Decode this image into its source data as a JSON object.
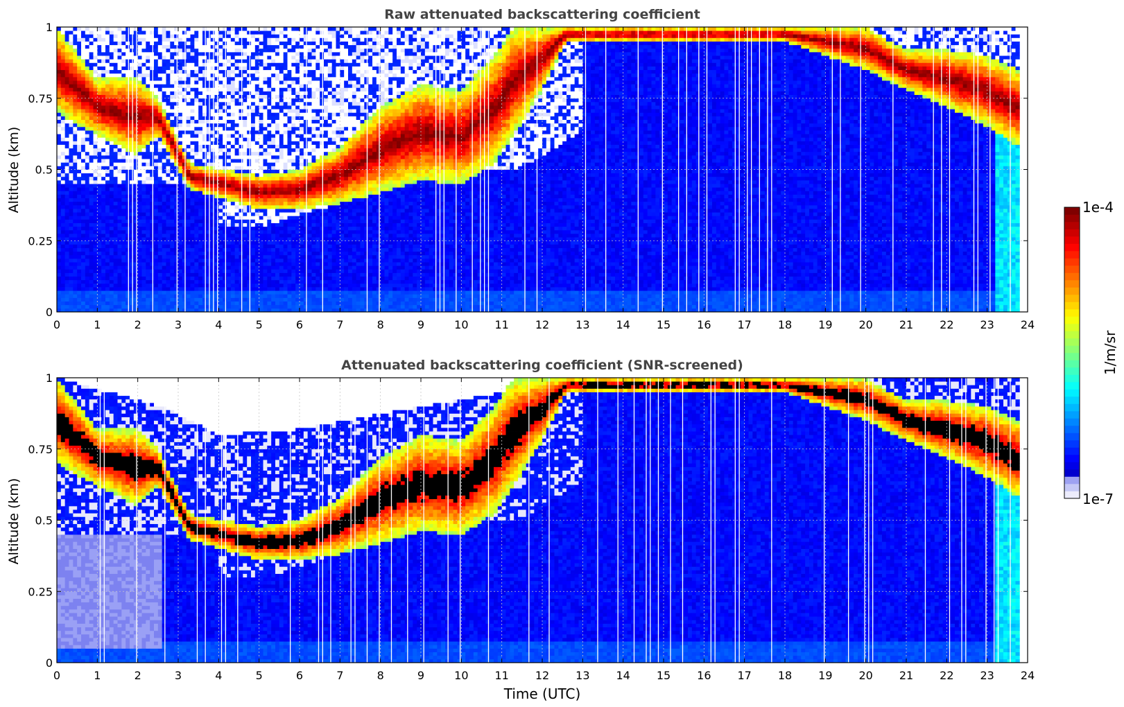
{
  "chart_data": [
    {
      "type": "heatmap",
      "title": "Raw attenuated backscattering coefficient",
      "xlabel": "",
      "ylabel": "Altitude (km)",
      "xlim": [
        0,
        24
      ],
      "ylim": [
        0,
        1
      ],
      "x_ticks": [
        0,
        1,
        2,
        3,
        4,
        5,
        6,
        7,
        8,
        9,
        10,
        11,
        12,
        13,
        14,
        15,
        16,
        17,
        18,
        19,
        20,
        21,
        22,
        23,
        24
      ],
      "y_ticks": [
        0,
        0.25,
        0.5,
        0.75,
        1
      ],
      "y_tick_labels": [
        "0",
        "0.25",
        "0.5",
        "0.75",
        "1"
      ],
      "grid": true,
      "colormap": "jet",
      "color_scale": "log",
      "cloud_layer_km": [
        {
          "t": 0.0,
          "base": 0.7,
          "top": 1.0
        },
        {
          "t": 1.0,
          "base": 0.62,
          "top": 0.82
        },
        {
          "t": 2.0,
          "base": 0.55,
          "top": 0.82
        },
        {
          "t": 2.5,
          "base": 0.62,
          "top": 0.75
        },
        {
          "t": 3.3,
          "base": 0.43,
          "top": 0.52
        },
        {
          "t": 5.0,
          "base": 0.36,
          "top": 0.48
        },
        {
          "t": 6.0,
          "base": 0.36,
          "top": 0.5
        },
        {
          "t": 7.0,
          "base": 0.38,
          "top": 0.58
        },
        {
          "t": 8.0,
          "base": 0.42,
          "top": 0.72
        },
        {
          "t": 9.0,
          "base": 0.46,
          "top": 0.8
        },
        {
          "t": 10.0,
          "base": 0.45,
          "top": 0.78
        },
        {
          "t": 10.8,
          "base": 0.52,
          "top": 0.9
        },
        {
          "t": 11.3,
          "base": 0.62,
          "top": 1.0
        },
        {
          "t": 12.0,
          "base": 0.78,
          "top": 1.0
        },
        {
          "t": 12.6,
          "base": 0.95,
          "top": 1.0
        },
        {
          "t": 18.0,
          "base": 0.95,
          "top": 1.0
        },
        {
          "t": 20.0,
          "base": 0.85,
          "top": 1.0
        },
        {
          "t": 21.0,
          "base": 0.78,
          "top": 0.92
        },
        {
          "t": 22.0,
          "base": 0.72,
          "top": 0.92
        },
        {
          "t": 23.0,
          "base": 0.65,
          "top": 0.9
        },
        {
          "t": 23.8,
          "base": 0.58,
          "top": 0.85
        }
      ]
    },
    {
      "type": "heatmap",
      "title": "Attenuated backscattering coefficient (SNR-screened)",
      "xlabel": "Time (UTC)",
      "ylabel": "Altitude (km)",
      "xlim": [
        0,
        24
      ],
      "ylim": [
        0,
        1
      ],
      "x_ticks": [
        0,
        1,
        2,
        3,
        4,
        5,
        6,
        7,
        8,
        9,
        10,
        11,
        12,
        13,
        14,
        15,
        16,
        17,
        18,
        19,
        20,
        21,
        22,
        23,
        24
      ],
      "y_ticks": [
        0,
        0.25,
        0.5,
        0.75,
        1
      ],
      "y_tick_labels": [
        "0",
        "0.25",
        "0.5",
        "0.75",
        "1"
      ],
      "grid": true,
      "colormap": "jet",
      "color_scale": "log",
      "screened_above_km": [
        {
          "t": 0.0,
          "alt": 1.0
        },
        {
          "t": 2.6,
          "alt": 0.9
        },
        {
          "t": 4.0,
          "alt": 0.8
        },
        {
          "t": 6.0,
          "alt": 0.82
        },
        {
          "t": 7.5,
          "alt": 0.86
        },
        {
          "t": 11.0,
          "alt": 0.95
        },
        {
          "t": 12.0,
          "alt": 1.0
        },
        {
          "t": 24.0,
          "alt": 1.0
        }
      ]
    }
  ],
  "colorbar": {
    "label": "1/m/sr",
    "max_label": "1e-4",
    "min_label": "1e-7",
    "levels": 40
  },
  "colors": {
    "clear_air": "#0a2cf0",
    "near_surface": "#2a6cff",
    "cloud_core": "#b00000",
    "screened_core": "#000000",
    "no_data": "#ffffff"
  }
}
